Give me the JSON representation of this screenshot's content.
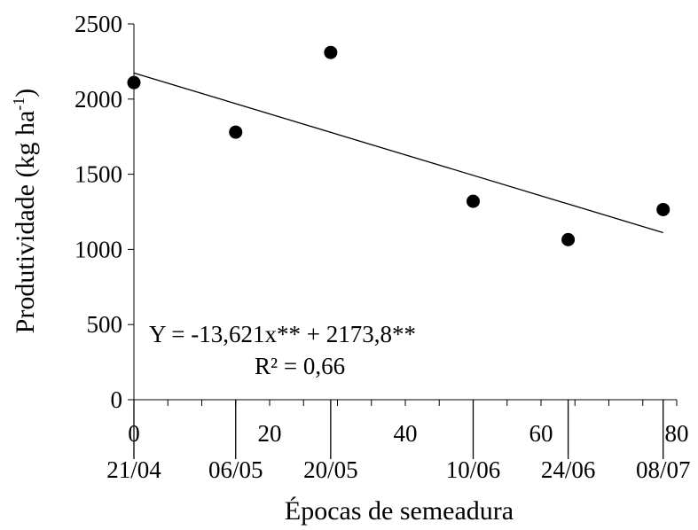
{
  "chart_data": {
    "type": "scatter",
    "title": "",
    "xlabel": "Épocas de semeadura",
    "ylabel_main": "Produtividade (kg ha",
    "ylabel_sup": "-1",
    "ylabel_close": ")",
    "xlim": [
      0,
      80
    ],
    "ylim": [
      0,
      2500
    ],
    "x_ticks": [
      0,
      20,
      40,
      60,
      80
    ],
    "x_tick_labels": [
      "0",
      "20",
      "40",
      "60",
      "80"
    ],
    "x_minor_step": 5,
    "y_ticks": [
      0,
      500,
      1000,
      1500,
      2000,
      2500
    ],
    "y_tick_labels": [
      "0",
      "500",
      "1000",
      "1500",
      "2000",
      "2500"
    ],
    "dates": [
      {
        "x": 0,
        "label": "21/04"
      },
      {
        "x": 15,
        "label": "06/05"
      },
      {
        "x": 29,
        "label": "20/05"
      },
      {
        "x": 50,
        "label": "10/06"
      },
      {
        "x": 64,
        "label": "24/06"
      },
      {
        "x": 78,
        "label": "08/07"
      }
    ],
    "points": [
      {
        "x": 0,
        "y": 2110
      },
      {
        "x": 15,
        "y": 1780
      },
      {
        "x": 29,
        "y": 2310
      },
      {
        "x": 50,
        "y": 1320
      },
      {
        "x": 64,
        "y": 1065
      },
      {
        "x": 78,
        "y": 1265
      }
    ],
    "trendline": {
      "slope": -13.621,
      "intercept": 2173.8,
      "x_range": [
        0,
        78
      ]
    },
    "equation": "Y = -13,621x** + 2173,8**",
    "r_squared": "R² = 0,66",
    "grid": false
  }
}
